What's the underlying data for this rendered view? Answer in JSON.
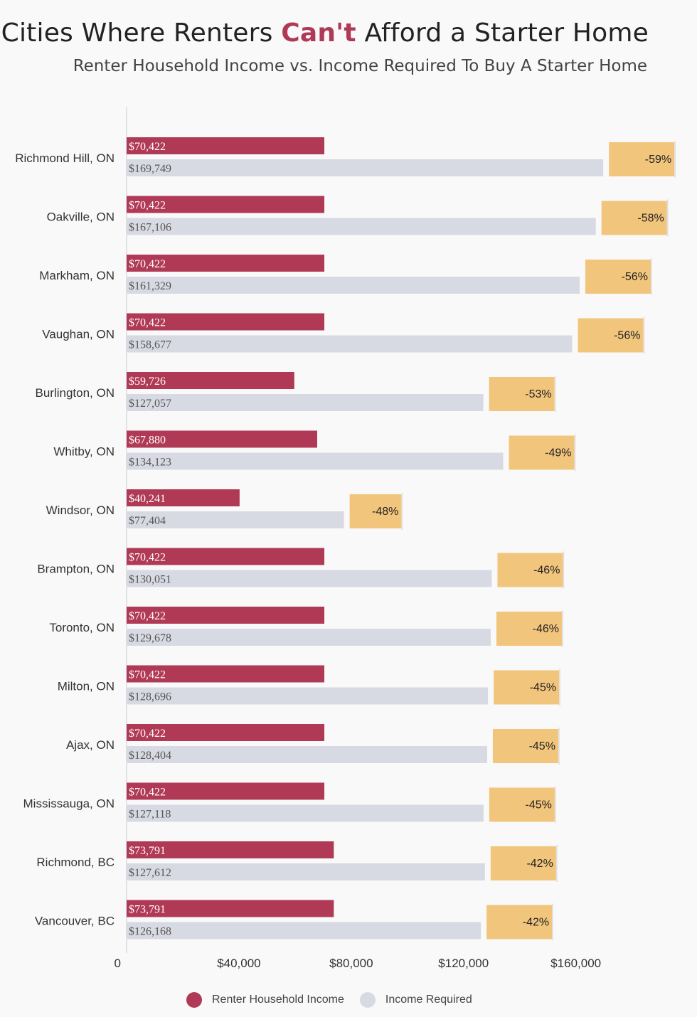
{
  "title": {
    "before": "Cities Where Renters ",
    "highlight": "Can't",
    "after": " Afford a Starter Home"
  },
  "subtitle": "Renter Household Income vs. Income Required To Buy A Starter Home",
  "colors": {
    "income": "#b03a55",
    "required": "#d8dae3",
    "gap": "#f2c57c",
    "title_accent": "#b03a55",
    "label_text": "#ffffff",
    "required_text": "#555555"
  },
  "legend": {
    "income_label": "Renter Household Income",
    "required_label": "Income Required"
  },
  "chart_data": {
    "type": "bar",
    "orientation": "horizontal",
    "title": "Cities Where Renters Can't Afford a Starter Home",
    "subtitle": "Renter Household Income vs. Income Required To Buy A Starter Home",
    "xlabel": "",
    "ylabel": "",
    "xlim": [
      0,
      180000
    ],
    "x_ticks": [
      {
        "value": 0,
        "label": "0"
      },
      {
        "value": 40000,
        "label": "$40,000"
      },
      {
        "value": 80000,
        "label": "$80,000"
      },
      {
        "value": 120000,
        "label": "$120,000"
      },
      {
        "value": 160000,
        "label": "$160,000"
      }
    ],
    "legend_position": "bottom",
    "grid": false,
    "categories": [
      "Richmond Hill, ON",
      "Oakville, ON",
      "Markham, ON",
      "Vaughan, ON",
      "Burlington, ON",
      "Whitby, ON",
      "Windsor, ON",
      "Brampton, ON",
      "Toronto, ON",
      "Milton, ON",
      "Ajax, ON",
      "Mississauga, ON",
      "Richmond, BC",
      "Vancouver, BC"
    ],
    "series": [
      {
        "name": "Renter Household Income",
        "values": [
          70422,
          70422,
          70422,
          70422,
          59726,
          67880,
          40241,
          70422,
          70422,
          70422,
          70422,
          70422,
          73791,
          73791
        ],
        "labels": [
          "$70,422",
          "$70,422",
          "$70,422",
          "$70,422",
          "$59,726",
          "$67,880",
          "$40,241",
          "$70,422",
          "$70,422",
          "$70,422",
          "$70,422",
          "$70,422",
          "$73,791",
          "$73,791"
        ]
      },
      {
        "name": "Income Required",
        "values": [
          169749,
          167106,
          161329,
          158677,
          127057,
          134123,
          77404,
          130051,
          129678,
          128696,
          128404,
          127118,
          127612,
          126168
        ],
        "labels": [
          "$169,749",
          "$167,106",
          "$161,329",
          "$158,677",
          "$127,057",
          "$134,123",
          "$77,404",
          "$130,051",
          "$129,678",
          "$128,696",
          "$128,404",
          "$127,118",
          "$127,612",
          "$126,168"
        ]
      }
    ],
    "gap_labels": [
      "-59%",
      "-58%",
      "-56%",
      "-56%",
      "-53%",
      "-49%",
      "-48%",
      "-46%",
      "-46%",
      "-45%",
      "-45%",
      "-45%",
      "-42%",
      "-42%"
    ]
  }
}
